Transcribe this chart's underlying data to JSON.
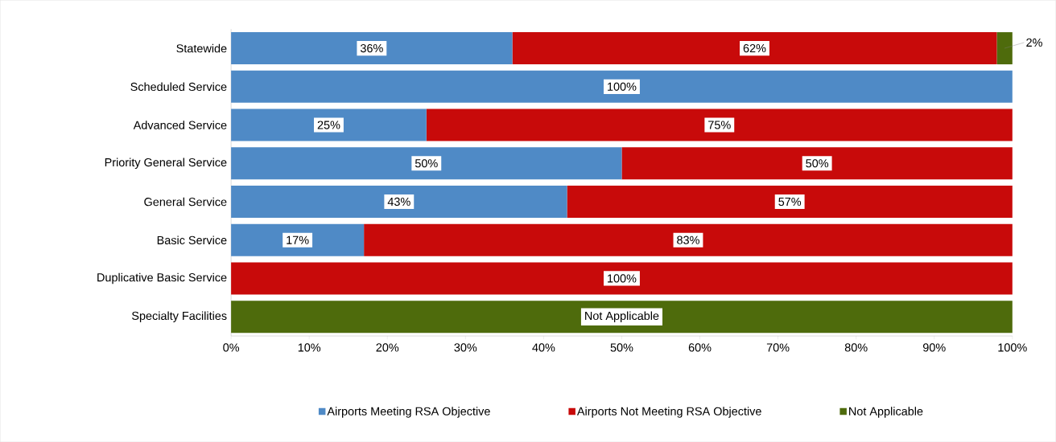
{
  "chart_data": {
    "type": "bar",
    "orientation": "horizontal",
    "stacked": true,
    "categories": [
      "Statewide",
      "Scheduled Service",
      "Advanced Service",
      "Priority General Service",
      "General Service",
      "Basic Service",
      "Duplicative Basic Service",
      "Specialty Facilities"
    ],
    "series": [
      {
        "name": "Airports Meeting RSA Objective",
        "color": "#4f8ac6",
        "values": [
          36,
          100,
          25,
          50,
          43,
          17,
          0,
          0
        ],
        "value_labels": [
          "36%",
          "100%",
          "25%",
          "50%",
          "43%",
          "17%",
          null,
          null
        ]
      },
      {
        "name": "Airports Not Meeting RSA Objective",
        "color": "#c80a0a",
        "values": [
          62,
          0,
          75,
          50,
          57,
          83,
          100,
          0
        ],
        "value_labels": [
          "62%",
          null,
          "75%",
          "50%",
          "57%",
          "83%",
          "100%",
          null
        ]
      },
      {
        "name": "Not Applicable",
        "color": "#4e6b0c",
        "values": [
          2,
          0,
          0,
          0,
          0,
          0,
          0,
          100
        ],
        "value_labels": [
          "2%",
          null,
          null,
          null,
          null,
          null,
          null,
          "Not Applicable"
        ]
      }
    ],
    "xlim": [
      0,
      100
    ],
    "xticks": [
      {
        "value": 0,
        "label": "0%"
      },
      {
        "value": 10,
        "label": "10%"
      },
      {
        "value": 20,
        "label": "20%"
      },
      {
        "value": 30,
        "label": "30%"
      },
      {
        "value": 40,
        "label": "40%"
      },
      {
        "value": 50,
        "label": "50%"
      },
      {
        "value": 60,
        "label": "60%"
      },
      {
        "value": 70,
        "label": "70%"
      },
      {
        "value": 80,
        "label": "80%"
      },
      {
        "value": 90,
        "label": "90%"
      },
      {
        "value": 100,
        "label": "100%"
      }
    ],
    "grid": false,
    "legend": "bottom"
  }
}
